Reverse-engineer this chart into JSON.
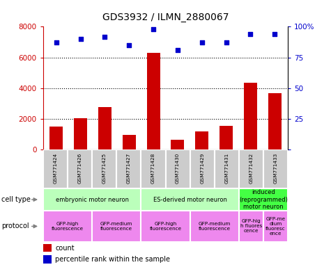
{
  "title": "GDS3932 / ILMN_2880067",
  "samples": [
    "GSM771424",
    "GSM771426",
    "GSM771425",
    "GSM771427",
    "GSM771428",
    "GSM771430",
    "GSM771429",
    "GSM771431",
    "GSM771432",
    "GSM771433"
  ],
  "counts": [
    1500,
    2050,
    2750,
    950,
    6300,
    650,
    1200,
    1550,
    4350,
    3650
  ],
  "percentiles": [
    87,
    90,
    92,
    85,
    98,
    81,
    87,
    87,
    94,
    94
  ],
  "bar_color": "#cc0000",
  "dot_color": "#0000cc",
  "ylim_left": [
    0,
    8000
  ],
  "ylim_right": [
    0,
    100
  ],
  "yticks_left": [
    0,
    2000,
    4000,
    6000,
    8000
  ],
  "yticks_right": [
    0,
    25,
    50,
    75,
    100
  ],
  "ytick_labels_right": [
    "0",
    "25",
    "50",
    "75",
    "100%"
  ],
  "cell_type_groups": [
    {
      "label": "embryonic motor neuron",
      "start": 0,
      "end": 3,
      "color": "#bbffbb"
    },
    {
      "label": "ES-derived motor neuron",
      "start": 4,
      "end": 7,
      "color": "#bbffbb"
    },
    {
      "label": "induced\n(reprogrammed)\nmotor neuron",
      "start": 8,
      "end": 9,
      "color": "#44ff44"
    }
  ],
  "protocol_groups": [
    {
      "label": "GFP-high\nfluorescence",
      "start": 0,
      "end": 1,
      "color": "#ee88ee"
    },
    {
      "label": "GFP-medium\nfluorescence",
      "start": 2,
      "end": 3,
      "color": "#ee88ee"
    },
    {
      "label": "GFP-high\nfluorescence",
      "start": 4,
      "end": 5,
      "color": "#ee88ee"
    },
    {
      "label": "GFP-medium\nfluorescence",
      "start": 6,
      "end": 7,
      "color": "#ee88ee"
    },
    {
      "label": "GFP-hig\nh fluores\ncence",
      "start": 8,
      "end": 8,
      "color": "#ee88ee"
    },
    {
      "label": "GFP-me\ndium\nfluoresc\nence",
      "start": 9,
      "end": 9,
      "color": "#ee88ee"
    }
  ],
  "left_axis_color": "#cc0000",
  "right_axis_color": "#0000cc",
  "sample_bg_color": "#cccccc",
  "grid_yticks": [
    2000,
    4000,
    6000
  ]
}
